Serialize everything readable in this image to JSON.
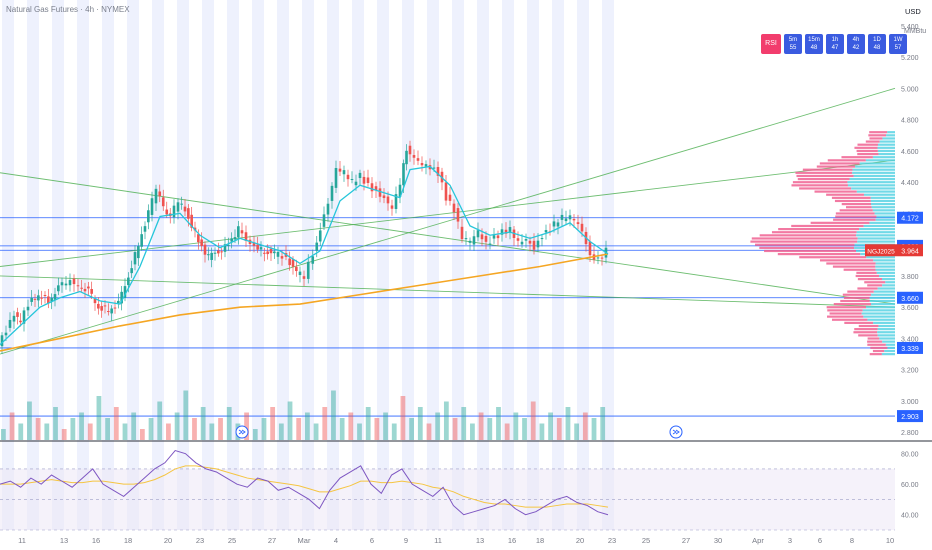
{
  "header": {
    "title": "Natural Gas Futures · 4h · NYMEX"
  },
  "currency": {
    "code": "USD",
    "unit": "MMBtu"
  },
  "rsi_panel": {
    "label": "RSI",
    "cells": [
      {
        "tf": "5m",
        "val": "55"
      },
      {
        "tf": "15m",
        "val": "48"
      },
      {
        "tf": "1h",
        "val": "47"
      },
      {
        "tf": "4h",
        "val": "42"
      },
      {
        "tf": "1D",
        "val": "48"
      },
      {
        "tf": "1W",
        "val": "57"
      }
    ]
  },
  "colors": {
    "up": "#26a69a",
    "down": "#ef5350",
    "ema_short": "#26c6da",
    "ma_long": "#f5a623",
    "hline": "#2962ff",
    "channel": "#4caf50",
    "rsi": "#7e57c2",
    "rsi_ma": "#f5c542",
    "vp_pink": "#f06292",
    "vp_cyan": "#4dd0e1",
    "band": "#eef1fd"
  },
  "chart_data": [
    {
      "type": "candlestick",
      "title": "Natural Gas Futures · 4h · NYMEX",
      "y_ticks": [
        "5.400",
        "5.200",
        "5.000",
        "4.800",
        "4.600",
        "4.400",
        "4.200",
        "4.000",
        "3.800",
        "3.600",
        "3.400",
        "3.200",
        "3.000",
        "2.800"
      ],
      "ylim": [
        2.75,
        5.45
      ],
      "x_ticks": [
        "11",
        "13",
        "16",
        "18",
        "20",
        "23",
        "25",
        "27",
        "Mar",
        "4",
        "6",
        "9",
        "11",
        "13",
        "16",
        "18",
        "20",
        "23",
        "25",
        "27",
        "30",
        "Apr",
        "3",
        "6",
        "8",
        "10"
      ],
      "price_badges": [
        {
          "value": 4.172,
          "label": "4.172"
        },
        {
          "value": 3.992,
          "label": "3.992"
        },
        {
          "value": 3.964,
          "label": "3.964",
          "symbol": "NGJ2025"
        },
        {
          "value": 3.66,
          "label": "3.660"
        },
        {
          "value": 3.339,
          "label": "3.339"
        },
        {
          "value": 2.903,
          "label": "2.903"
        }
      ],
      "horizontal_levels": [
        4.172,
        3.992,
        3.964,
        3.66,
        3.339,
        2.903
      ],
      "close_path": [
        [
          0,
          3.35
        ],
        [
          8,
          3.45
        ],
        [
          16,
          3.55
        ],
        [
          22,
          3.5
        ],
        [
          30,
          3.62
        ],
        [
          40,
          3.68
        ],
        [
          50,
          3.64
        ],
        [
          60,
          3.72
        ],
        [
          72,
          3.78
        ],
        [
          80,
          3.74
        ],
        [
          90,
          3.7
        ],
        [
          100,
          3.6
        ],
        [
          110,
          3.58
        ],
        [
          120,
          3.62
        ],
        [
          130,
          3.8
        ],
        [
          140,
          4.0
        ],
        [
          150,
          4.2
        ],
        [
          158,
          4.36
        ],
        [
          165,
          4.24
        ],
        [
          172,
          4.18
        ],
        [
          180,
          4.28
        ],
        [
          190,
          4.18
        ],
        [
          200,
          4.02
        ],
        [
          210,
          3.92
        ],
        [
          220,
          3.96
        ],
        [
          230,
          4.0
        ],
        [
          240,
          4.1
        ],
        [
          248,
          4.02
        ],
        [
          256,
          3.98
        ],
        [
          266,
          3.96
        ],
        [
          276,
          3.94
        ],
        [
          288,
          3.92
        ],
        [
          298,
          3.82
        ],
        [
          306,
          3.8
        ],
        [
          315,
          3.94
        ],
        [
          322,
          4.1
        ],
        [
          330,
          4.26
        ],
        [
          338,
          4.48
        ],
        [
          346,
          4.46
        ],
        [
          354,
          4.4
        ],
        [
          362,
          4.44
        ],
        [
          370,
          4.38
        ],
        [
          378,
          4.34
        ],
        [
          386,
          4.3
        ],
        [
          394,
          4.24
        ],
        [
          402,
          4.4
        ],
        [
          408,
          4.62
        ],
        [
          416,
          4.56
        ],
        [
          424,
          4.52
        ],
        [
          432,
          4.5
        ],
        [
          440,
          4.46
        ],
        [
          448,
          4.3
        ],
        [
          456,
          4.22
        ],
        [
          464,
          4.04
        ],
        [
          472,
          4.02
        ],
        [
          480,
          4.08
        ],
        [
          488,
          4.0
        ],
        [
          496,
          4.04
        ],
        [
          504,
          4.08
        ],
        [
          512,
          4.1
        ],
        [
          520,
          4.02
        ],
        [
          528,
          4.04
        ],
        [
          536,
          3.98
        ],
        [
          544,
          4.06
        ],
        [
          552,
          4.1
        ],
        [
          560,
          4.16
        ],
        [
          568,
          4.18
        ],
        [
          576,
          4.16
        ],
        [
          584,
          4.08
        ],
        [
          592,
          3.92
        ],
        [
          600,
          3.9
        ],
        [
          608,
          3.96
        ]
      ],
      "ema_short_path": [
        [
          0,
          3.36
        ],
        [
          20,
          3.48
        ],
        [
          40,
          3.6
        ],
        [
          60,
          3.66
        ],
        [
          80,
          3.7
        ],
        [
          100,
          3.64
        ],
        [
          120,
          3.62
        ],
        [
          140,
          3.86
        ],
        [
          160,
          4.18
        ],
        [
          180,
          4.2
        ],
        [
          200,
          4.06
        ],
        [
          220,
          3.98
        ],
        [
          240,
          4.04
        ],
        [
          260,
          4.0
        ],
        [
          280,
          3.96
        ],
        [
          300,
          3.88
        ],
        [
          320,
          3.96
        ],
        [
          340,
          4.28
        ],
        [
          360,
          4.38
        ],
        [
          380,
          4.34
        ],
        [
          400,
          4.3
        ],
        [
          410,
          4.48
        ],
        [
          430,
          4.5
        ],
        [
          450,
          4.38
        ],
        [
          470,
          4.12
        ],
        [
          490,
          4.06
        ],
        [
          510,
          4.08
        ],
        [
          530,
          4.04
        ],
        [
          550,
          4.08
        ],
        [
          570,
          4.14
        ],
        [
          590,
          4.02
        ],
        [
          608,
          3.94
        ]
      ],
      "ma_long_path": [
        [
          0,
          3.32
        ],
        [
          60,
          3.4
        ],
        [
          120,
          3.48
        ],
        [
          180,
          3.55
        ],
        [
          240,
          3.6
        ],
        [
          300,
          3.62
        ],
        [
          360,
          3.68
        ],
        [
          420,
          3.74
        ],
        [
          480,
          3.8
        ],
        [
          540,
          3.86
        ],
        [
          608,
          3.94
        ]
      ],
      "trend_lines": [
        {
          "x1": 0,
          "y1": 3.3,
          "x2": 895,
          "y2": 5.0
        },
        {
          "x1": 0,
          "y1": 3.86,
          "x2": 895,
          "y2": 4.54
        },
        {
          "x1": 0,
          "y1": 3.8,
          "x2": 895,
          "y2": 3.6
        },
        {
          "x1": 0,
          "y1": 4.46,
          "x2": 895,
          "y2": 3.62
        }
      ]
    },
    {
      "type": "bar",
      "title": "",
      "series": [
        {
          "values": [
            2,
            5,
            3,
            7,
            4,
            3,
            6,
            2,
            4,
            5,
            3,
            8,
            4,
            6,
            3,
            5,
            2,
            4,
            7,
            3,
            5,
            9,
            4,
            6,
            3,
            4,
            6,
            3,
            5,
            2,
            4,
            6,
            3,
            7,
            4,
            5,
            3,
            6,
            9,
            4,
            5,
            3,
            6,
            4,
            5,
            3,
            8,
            4,
            6,
            3,
            5,
            7,
            4,
            6,
            3,
            5,
            4,
            6,
            3,
            5,
            4,
            7,
            3,
            5,
            4,
            6,
            3,
            5,
            4,
            6
          ]
        }
      ]
    },
    {
      "type": "line",
      "title": "",
      "y_ticks": [
        "80.00",
        "60.00",
        "40.00"
      ],
      "ylim": [
        30,
        85
      ],
      "series": [
        {
          "values": [
            60,
            62,
            58,
            64,
            60,
            66,
            62,
            58,
            64,
            70,
            60,
            56,
            52,
            58,
            64,
            70,
            74,
            82,
            80,
            74,
            70,
            68,
            64,
            60,
            58,
            64,
            62,
            56,
            58,
            54,
            50,
            44,
            56,
            64,
            68,
            72,
            60,
            54,
            66,
            70,
            60,
            56,
            52,
            58,
            46,
            40,
            42,
            44,
            46,
            50,
            44,
            40,
            42,
            46,
            50,
            52,
            48,
            46,
            42,
            40
          ]
        },
        {
          "values": [
            60,
            60,
            60,
            61,
            62,
            63,
            62,
            61,
            61,
            62,
            62,
            61,
            60,
            60,
            61,
            63,
            66,
            70,
            72,
            72,
            71,
            70,
            68,
            66,
            64,
            63,
            62,
            61,
            60,
            59,
            57,
            55,
            55,
            57,
            59,
            62,
            62,
            61,
            61,
            62,
            61,
            60,
            58,
            57,
            55,
            52,
            50,
            48,
            47,
            47,
            46,
            45,
            45,
            45,
            46,
            47,
            47,
            47,
            46,
            45
          ]
        }
      ]
    }
  ]
}
